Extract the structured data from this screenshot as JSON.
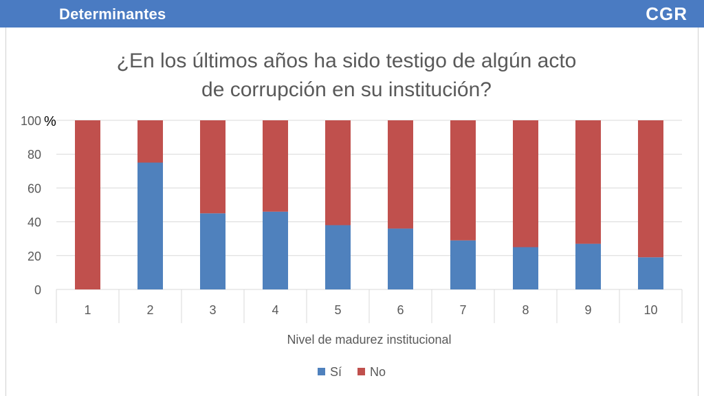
{
  "header": {
    "title": "Determinantes",
    "logo": "CGR"
  },
  "colors": {
    "header_bg": "#4a7bc2",
    "si": "#4f81bd",
    "no": "#c0504d",
    "grid": "#d9d9d9",
    "text": "#595959"
  },
  "chart_data": {
    "type": "bar",
    "stacked": true,
    "title_lines": [
      "¿En los últimos años ha sido testigo de algún acto",
      "de corrupción en su institución?"
    ],
    "xlabel": "Nivel de madurez institucional",
    "ylabel": "",
    "y_unit": "%",
    "ylim": [
      0,
      100
    ],
    "yticks": [
      "0",
      "20",
      "40",
      "60",
      "80",
      "100"
    ],
    "categories": [
      "1",
      "2",
      "3",
      "4",
      "5",
      "6",
      "7",
      "8",
      "9",
      "10"
    ],
    "series": [
      {
        "name": "Sí",
        "values": [
          0,
          75,
          45,
          46,
          38,
          36,
          29,
          25,
          27,
          19
        ]
      },
      {
        "name": "No",
        "values": [
          100,
          25,
          55,
          54,
          62,
          64,
          71,
          75,
          73,
          81
        ]
      }
    ],
    "grid": true,
    "legend": "bottom"
  }
}
